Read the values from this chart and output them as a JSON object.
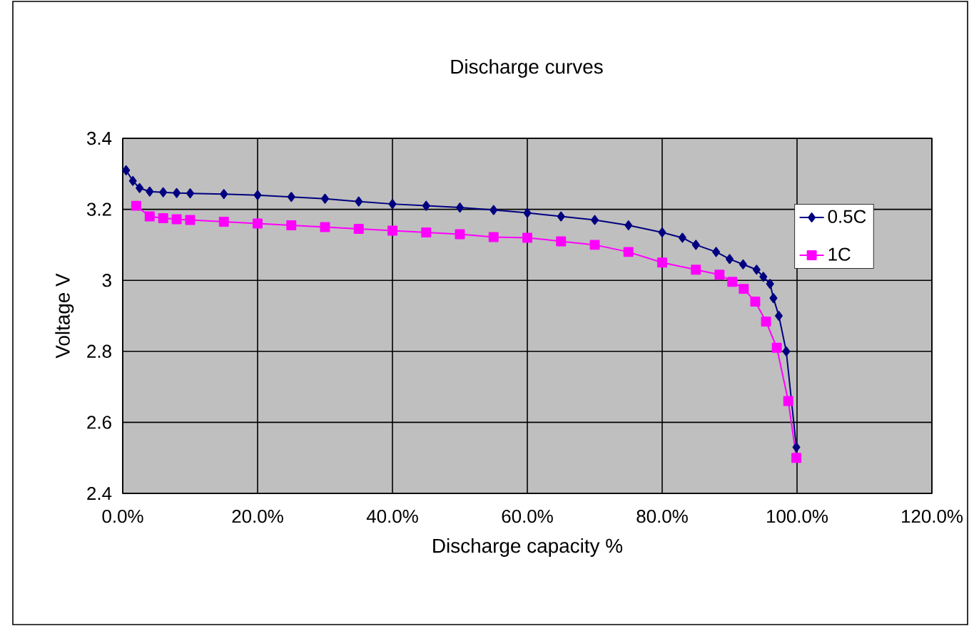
{
  "chart_data": {
    "type": "line",
    "title": "Discharge curves",
    "xlabel": "Discharge capacity %",
    "ylabel": "Voltage V",
    "xlim": [
      0,
      1.2
    ],
    "ylim": [
      2.4,
      3.4
    ],
    "xticks": [
      {
        "value": 0,
        "label": "0.0%"
      },
      {
        "value": 0.2,
        "label": "20.0%"
      },
      {
        "value": 0.4,
        "label": "40.0%"
      },
      {
        "value": 0.6,
        "label": "60.0%"
      },
      {
        "value": 0.8,
        "label": "80.0%"
      },
      {
        "value": 1.0,
        "label": "100.0%"
      },
      {
        "value": 1.2,
        "label": "120.0%"
      }
    ],
    "yticks": [
      2.4,
      2.6,
      2.8,
      3,
      3.2,
      3.4
    ],
    "grid": true,
    "legend": "top right",
    "series": [
      {
        "name": "0.5C",
        "color": "#000080",
        "marker": "diamond",
        "x": [
          0.005,
          0.015,
          0.025,
          0.04,
          0.06,
          0.08,
          0.1,
          0.15,
          0.2,
          0.25,
          0.3,
          0.35,
          0.4,
          0.45,
          0.5,
          0.55,
          0.6,
          0.65,
          0.7,
          0.75,
          0.8,
          0.83,
          0.85,
          0.88,
          0.9,
          0.92,
          0.94,
          0.95,
          0.96,
          0.965,
          0.973,
          0.984,
          0.999
        ],
        "values": [
          3.31,
          3.28,
          3.26,
          3.25,
          3.248,
          3.246,
          3.245,
          3.243,
          3.24,
          3.235,
          3.23,
          3.222,
          3.215,
          3.21,
          3.205,
          3.198,
          3.19,
          3.18,
          3.17,
          3.155,
          3.135,
          3.12,
          3.1,
          3.08,
          3.06,
          3.045,
          3.03,
          3.01,
          2.99,
          2.95,
          2.9,
          2.8,
          2.53
        ]
      },
      {
        "name": "1C",
        "color": "#ff00ff",
        "marker": "square",
        "x": [
          0.02,
          0.04,
          0.06,
          0.08,
          0.1,
          0.15,
          0.2,
          0.25,
          0.3,
          0.35,
          0.4,
          0.45,
          0.5,
          0.55,
          0.6,
          0.65,
          0.7,
          0.75,
          0.8,
          0.85,
          0.885,
          0.904,
          0.921,
          0.938,
          0.954,
          0.97,
          0.987,
          0.999
        ],
        "values": [
          3.21,
          3.18,
          3.175,
          3.172,
          3.17,
          3.165,
          3.16,
          3.155,
          3.15,
          3.145,
          3.14,
          3.135,
          3.13,
          3.122,
          3.12,
          3.11,
          3.1,
          3.08,
          3.05,
          3.03,
          3.016,
          2.996,
          2.976,
          2.94,
          2.884,
          2.81,
          2.66,
          2.5
        ]
      }
    ]
  }
}
